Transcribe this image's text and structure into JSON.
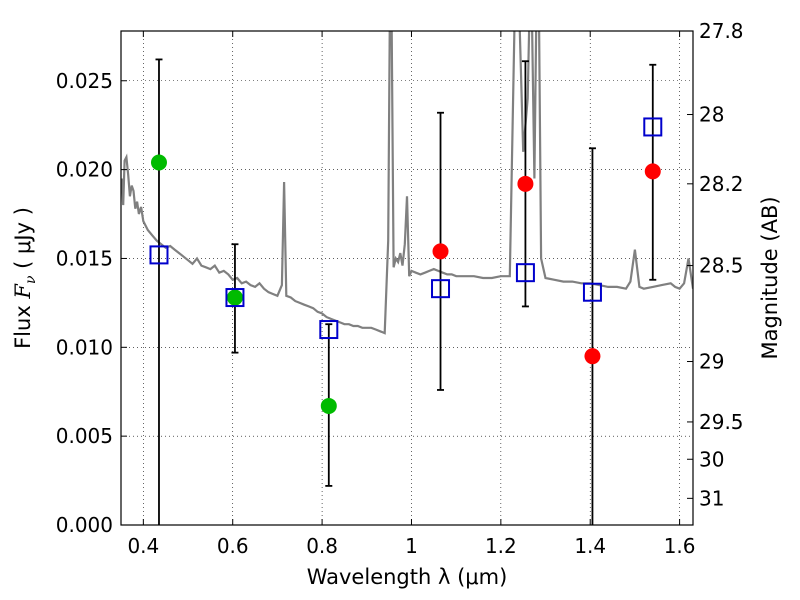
{
  "chart_data": {
    "type": "scatter",
    "xlabel": "Wavelength  λ (μm)",
    "ylabel_text": "Flux  ",
    "ylabel_math": "F",
    "ylabel_sub": "ν",
    "ylabel_unit": "  ( μJy )",
    "y2label": "Magnitude (AB)",
    "xlim": [
      0.35,
      1.63
    ],
    "ylim": [
      0.0,
      0.0278
    ],
    "x_ticks": [
      0.4,
      0.6,
      0.8,
      1.0,
      1.2,
      1.4,
      1.6
    ],
    "x_tick_labels": [
      "0.4",
      "0.6",
      "0.8",
      "1",
      "1.2",
      "1.4",
      "1.6"
    ],
    "y_ticks": [
      0.0,
      0.005,
      0.01,
      0.015,
      0.02,
      0.025
    ],
    "y_tick_labels": [
      "0.000",
      "0.005",
      "0.010",
      "0.015",
      "0.020",
      "0.025"
    ],
    "y2_ticks": [
      {
        "label": "27.8",
        "flux": 0.0278
      },
      {
        "label": "28",
        "flux": 0.0231
      },
      {
        "label": "28.2",
        "flux": 0.0192
      },
      {
        "label": "28.5",
        "flux": 0.0146
      },
      {
        "label": "29",
        "flux": 0.0092
      },
      {
        "label": "29.5",
        "flux": 0.0058
      },
      {
        "label": "30",
        "flux": 0.0037
      },
      {
        "label": "31",
        "flux": 0.0015
      }
    ],
    "grid": true,
    "model_spectrum": {
      "color": "#808080",
      "x": [
        0.352,
        0.355,
        0.358,
        0.362,
        0.366,
        0.37,
        0.374,
        0.378,
        0.382,
        0.386,
        0.39,
        0.395,
        0.4,
        0.41,
        0.42,
        0.43,
        0.44,
        0.45,
        0.46,
        0.47,
        0.48,
        0.49,
        0.5,
        0.51,
        0.52,
        0.53,
        0.54,
        0.55,
        0.56,
        0.57,
        0.58,
        0.59,
        0.6,
        0.61,
        0.62,
        0.63,
        0.64,
        0.65,
        0.66,
        0.67,
        0.68,
        0.69,
        0.7,
        0.71,
        0.715,
        0.72,
        0.73,
        0.74,
        0.75,
        0.76,
        0.77,
        0.78,
        0.79,
        0.8,
        0.81,
        0.82,
        0.83,
        0.84,
        0.85,
        0.86,
        0.87,
        0.88,
        0.89,
        0.9,
        0.91,
        0.92,
        0.93,
        0.94,
        0.948,
        0.952,
        0.955,
        0.96,
        0.965,
        0.97,
        0.975,
        0.98,
        0.985,
        0.99,
        0.995,
        1.0,
        1.01,
        1.02,
        1.03,
        1.04,
        1.05,
        1.06,
        1.07,
        1.08,
        1.09,
        1.1,
        1.12,
        1.14,
        1.16,
        1.18,
        1.2,
        1.22,
        1.232,
        1.24,
        1.25,
        1.26,
        1.265,
        1.27,
        1.275,
        1.28,
        1.285,
        1.29,
        1.3,
        1.32,
        1.34,
        1.36,
        1.38,
        1.4,
        1.42,
        1.44,
        1.46,
        1.48,
        1.49,
        1.5,
        1.51,
        1.52,
        1.54,
        1.56,
        1.58,
        1.59,
        1.6,
        1.61,
        1.62,
        1.63
      ],
      "y": [
        0.0195,
        0.018,
        0.0205,
        0.0207,
        0.0197,
        0.0185,
        0.0191,
        0.0188,
        0.0178,
        0.0182,
        0.0175,
        0.0179,
        0.0171,
        0.0166,
        0.0163,
        0.016,
        0.0158,
        0.0156,
        0.0157,
        0.0155,
        0.0153,
        0.0151,
        0.0149,
        0.0147,
        0.015,
        0.0146,
        0.0145,
        0.0144,
        0.0146,
        0.0142,
        0.0143,
        0.0141,
        0.0138,
        0.0139,
        0.0136,
        0.0137,
        0.0135,
        0.0134,
        0.0136,
        0.0133,
        0.0131,
        0.013,
        0.0129,
        0.0135,
        0.0193,
        0.0129,
        0.0128,
        0.0126,
        0.0125,
        0.0124,
        0.0123,
        0.0122,
        0.012,
        0.0119,
        0.0117,
        0.0116,
        0.0115,
        0.0114,
        0.0113,
        0.0113,
        0.0112,
        0.0112,
        0.0111,
        0.0111,
        0.0111,
        0.011,
        0.0109,
        0.0108,
        0.016,
        0.03,
        0.03,
        0.0145,
        0.015,
        0.0148,
        0.0153,
        0.0146,
        0.0158,
        0.0185,
        0.014,
        0.0143,
        0.0142,
        0.0141,
        0.0142,
        0.0143,
        0.0144,
        0.0143,
        0.0142,
        0.0141,
        0.0141,
        0.014,
        0.014,
        0.014,
        0.0139,
        0.0139,
        0.014,
        0.014,
        0.03,
        0.03,
        0.021,
        0.024,
        0.03,
        0.028,
        0.0195,
        0.03,
        0.03,
        0.015,
        0.0139,
        0.0138,
        0.0137,
        0.0137,
        0.0136,
        0.0136,
        0.0135,
        0.0134,
        0.0134,
        0.0133,
        0.0137,
        0.0155,
        0.0134,
        0.0133,
        0.0134,
        0.0135,
        0.0136,
        0.0134,
        0.0133,
        0.0136,
        0.015,
        0.0133
      ]
    },
    "observed_points": {
      "color": "red",
      "x": [
        1.065,
        1.255,
        1.405,
        1.54
      ],
      "y": [
        0.0154,
        0.0192,
        0.0095,
        0.0199
      ]
    },
    "green_points": {
      "color": "#00bb00",
      "x": [
        0.435,
        0.605,
        0.815
      ],
      "y": [
        0.0204,
        0.0128,
        0.0067
      ]
    },
    "model_points": {
      "color": "#0000cc",
      "x": [
        0.435,
        0.605,
        0.815,
        1.065,
        1.255,
        1.405,
        1.54
      ],
      "y": [
        0.0152,
        0.0128,
        0.011,
        0.0133,
        0.0142,
        0.0131,
        0.0224
      ],
      "yerr_low": [
        0.0,
        0.0097,
        0.0022,
        0.0076,
        0.0123,
        0.0,
        0.0138
      ],
      "yerr_high": [
        0.0262,
        0.0158,
        0.0113,
        0.0232,
        0.0261,
        0.0212,
        0.0259
      ]
    }
  }
}
